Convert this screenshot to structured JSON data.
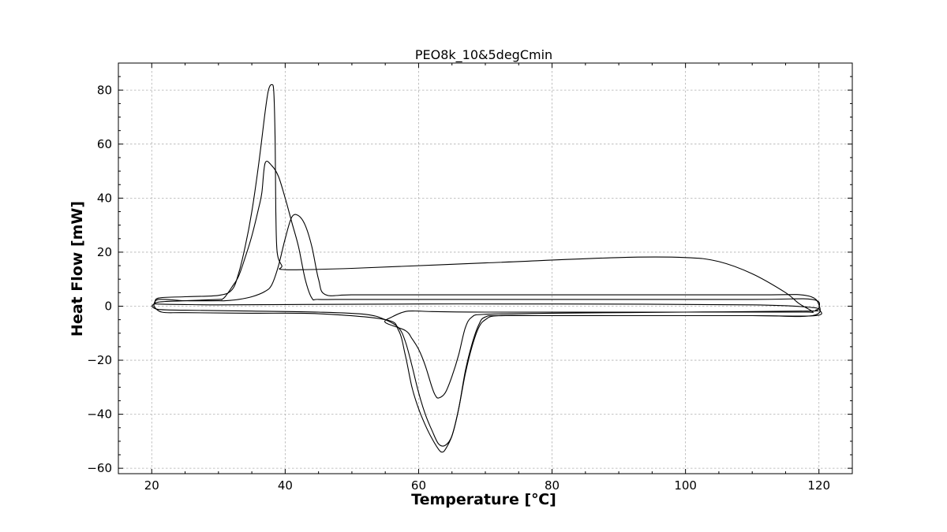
{
  "chart_data": {
    "type": "line",
    "title": "PEO8k_10&5degCmin",
    "xlabel": "Temperature  [℃]",
    "ylabel": "Heat Flow [mW]",
    "xlim": [
      15,
      125
    ],
    "ylim": [
      -62,
      90
    ],
    "xticks": [
      20,
      40,
      60,
      80,
      100,
      120
    ],
    "yticks": [
      -60,
      -40,
      -20,
      0,
      20,
      40,
      60,
      80
    ],
    "xtick_labels": [
      "20",
      "40",
      "60",
      "80",
      "100",
      "120"
    ],
    "ytick_labels": [
      "−60",
      "−40",
      "−20",
      "0",
      "20",
      "40",
      "60",
      "80"
    ],
    "grid": true,
    "legend": "none",
    "series": [
      {
        "points": [
          [
            20,
            0
          ],
          [
            21,
            -1.2
          ],
          [
            25,
            -1.5
          ],
          [
            35,
            -1.8
          ],
          [
            45,
            -2.2
          ],
          [
            52,
            -3
          ],
          [
            55,
            -5
          ],
          [
            57,
            -8
          ],
          [
            58,
            -13
          ],
          [
            59,
            -22
          ],
          [
            60,
            -32
          ],
          [
            61,
            -40
          ],
          [
            62,
            -46
          ],
          [
            63,
            -51
          ],
          [
            64,
            -51.5
          ],
          [
            65,
            -48
          ],
          [
            66,
            -38
          ],
          [
            67,
            -25
          ],
          [
            68,
            -15
          ],
          [
            69,
            -8
          ],
          [
            70,
            -5
          ],
          [
            72,
            -3.5
          ],
          [
            80,
            -3.5
          ],
          [
            100,
            -3.5
          ],
          [
            110,
            -3.5
          ],
          [
            119.5,
            -3.5
          ],
          [
            120,
            -1
          ],
          [
            119,
            2.5
          ],
          [
            110,
            2.5
          ],
          [
            80,
            2.5
          ],
          [
            60,
            2.5
          ],
          [
            50,
            2.5
          ],
          [
            45,
            2.5
          ],
          [
            44,
            3
          ],
          [
            43,
            10
          ],
          [
            42,
            22
          ],
          [
            41,
            31
          ],
          [
            40,
            40
          ],
          [
            39,
            48
          ],
          [
            38,
            52
          ],
          [
            37,
            53
          ],
          [
            36.5,
            42
          ],
          [
            36,
            36
          ],
          [
            35,
            26
          ],
          [
            34,
            18
          ],
          [
            33,
            11
          ],
          [
            32,
            7
          ],
          [
            31,
            3.5
          ],
          [
            30.5,
            2.5
          ],
          [
            30,
            2.5
          ],
          [
            25,
            2
          ],
          [
            21,
            1.5
          ],
          [
            20,
            0
          ]
        ]
      },
      {
        "points": [
          [
            20.3,
            0
          ],
          [
            21.5,
            -2.2
          ],
          [
            25,
            -2.4
          ],
          [
            35,
            -2.6
          ],
          [
            45,
            -2.8
          ],
          [
            55,
            -5
          ],
          [
            57,
            -9
          ],
          [
            58,
            -18
          ],
          [
            59,
            -30
          ],
          [
            60,
            -38
          ],
          [
            61,
            -44
          ],
          [
            62,
            -49
          ],
          [
            63,
            -53
          ],
          [
            63.5,
            -54
          ],
          [
            64,
            -53
          ],
          [
            65,
            -48
          ],
          [
            66,
            -38
          ],
          [
            67,
            -24
          ],
          [
            68,
            -14
          ],
          [
            69,
            -7
          ],
          [
            70,
            -4
          ],
          [
            73,
            -3.5
          ],
          [
            90,
            -3.5
          ],
          [
            110,
            -3.5
          ],
          [
            119,
            -3.5
          ],
          [
            120,
            0.5
          ],
          [
            118,
            4
          ],
          [
            110,
            4.2
          ],
          [
            80,
            4.2
          ],
          [
            60,
            4.2
          ],
          [
            50,
            4.2
          ],
          [
            46,
            4.3
          ],
          [
            45,
            10
          ],
          [
            44,
            22
          ],
          [
            43,
            30
          ],
          [
            42,
            33.5
          ],
          [
            41,
            33
          ],
          [
            40,
            25
          ],
          [
            39,
            15
          ],
          [
            38,
            8
          ],
          [
            37,
            5.5
          ],
          [
            35,
            3.5
          ],
          [
            33,
            2.5
          ],
          [
            31,
            2
          ],
          [
            30,
            2
          ],
          [
            25,
            2
          ],
          [
            21,
            2.5
          ],
          [
            20.3,
            0
          ]
        ]
      },
      {
        "points": [
          [
            20.5,
            0.8
          ],
          [
            21,
            3
          ],
          [
            25,
            3.5
          ],
          [
            30,
            4
          ],
          [
            32,
            6
          ],
          [
            33,
            12
          ],
          [
            34,
            22
          ],
          [
            35,
            35
          ],
          [
            36,
            52
          ],
          [
            37,
            72
          ],
          [
            37.5,
            80
          ],
          [
            38,
            82
          ],
          [
            38.3,
            79
          ],
          [
            38.5,
            60
          ],
          [
            38.6,
            35
          ],
          [
            38.8,
            20
          ],
          [
            39.5,
            15
          ],
          [
            40,
            13.5
          ],
          [
            50,
            14
          ],
          [
            70,
            16
          ],
          [
            90,
            18
          ],
          [
            100,
            18
          ],
          [
            105,
            16.5
          ],
          [
            110,
            12
          ],
          [
            115,
            5
          ],
          [
            117,
            1
          ],
          [
            119,
            -2
          ],
          [
            118,
            -2.2
          ],
          [
            110,
            -2.2
          ],
          [
            90,
            -2.2
          ],
          [
            70,
            -2.2
          ],
          [
            62,
            -2
          ],
          [
            60,
            -1.8
          ],
          [
            58,
            -2
          ],
          [
            56,
            -4
          ],
          [
            55,
            -6
          ],
          [
            58,
            -9
          ],
          [
            59,
            -12
          ],
          [
            60,
            -16
          ],
          [
            61,
            -22
          ],
          [
            62,
            -30
          ],
          [
            62.5,
            -33
          ],
          [
            63,
            -34
          ],
          [
            64,
            -32
          ],
          [
            65,
            -26
          ],
          [
            66,
            -18
          ],
          [
            67,
            -8
          ],
          [
            68,
            -4
          ],
          [
            70,
            -3
          ],
          [
            80,
            -2.6
          ],
          [
            100,
            -2.2
          ],
          [
            118,
            -1.8
          ],
          [
            119.5,
            -1.5
          ],
          [
            119,
            -0.5
          ],
          [
            110,
            0.5
          ],
          [
            80,
            0.8
          ],
          [
            60,
            0.8
          ],
          [
            40,
            0.6
          ],
          [
            30,
            0.5
          ],
          [
            25,
            0.6
          ],
          [
            20.5,
            0.8
          ]
        ]
      }
    ]
  }
}
